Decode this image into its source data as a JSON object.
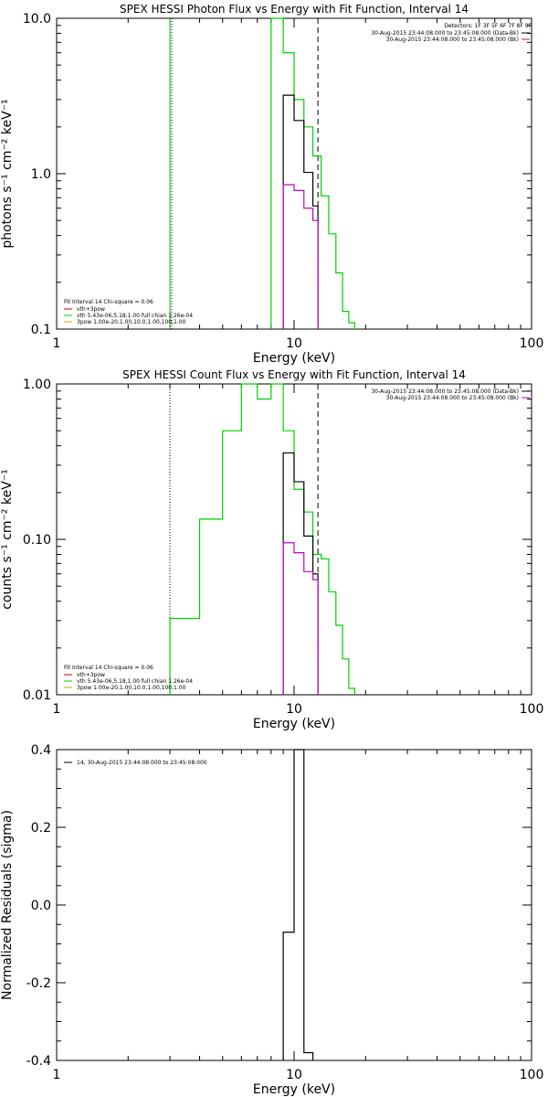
{
  "chart_data": [
    {
      "type": "line",
      "title": "SPEX HESSI Photon Flux vs Energy with Fit Function, Interval 14",
      "xlabel": "Energy (keV)",
      "ylabel": "photons s⁻¹ cm⁻² keV⁻¹",
      "xscale": "log",
      "yscale": "log",
      "xlim": [
        1,
        100
      ],
      "ylim": [
        0.1,
        10
      ],
      "x_ticks": [
        {
          "v": 1,
          "label": "1"
        },
        {
          "v": 10,
          "label": "10"
        },
        {
          "v": 100,
          "label": "100"
        }
      ],
      "y_ticks": [
        {
          "v": 0.1,
          "label": "0.1"
        },
        {
          "v": 1,
          "label": "1.0"
        },
        {
          "v": 10,
          "label": "10.0"
        }
      ],
      "vlines": [
        {
          "x": 3.0,
          "style": "solid",
          "color": "#00c000"
        },
        {
          "x": 3.05,
          "style": "dotted",
          "color": "#000000"
        },
        {
          "x": 12.6,
          "style": "dashed",
          "color": "#000000"
        }
      ],
      "series": [
        {
          "name": "vth+3pow",
          "color": "#00d000",
          "edges": [
            8.0,
            9.0,
            10.0,
            11.0,
            12.0,
            13.0,
            14.0,
            15.0,
            16.0,
            17.0,
            18.0
          ],
          "values": [
            10,
            6.0,
            3.0,
            2.0,
            1.3,
            0.72,
            0.41,
            0.23,
            0.13,
            0.11
          ]
        },
        {
          "name": "data",
          "color": "#000000",
          "edges": [
            9.0,
            10.0,
            11.0,
            12.0,
            12.6
          ],
          "values": [
            3.2,
            2.2,
            1.02,
            0.62
          ]
        },
        {
          "name": "background",
          "color": "#c000c0",
          "edges": [
            9.0,
            10.0,
            11.0,
            12.0,
            12.6
          ],
          "values": [
            0.85,
            0.78,
            0.6,
            0.5
          ]
        }
      ],
      "top_right_legend": {
        "header": "Detectors: 1F 3F 5F 6F 7F 8F 9F",
        "entries": [
          {
            "label": "30-Aug-2015 23:44:08.000 to 23:45:08.000 (Data-Bk)",
            "color": "#000000"
          },
          {
            "label": "30-Aug-2015 23:44:08.000 to 23:45:08.000 (Bk)",
            "color": "#c000c0"
          }
        ]
      },
      "bottom_left_legend": {
        "header": "Fit Interval 14   Chi-square = 0.06",
        "entries": [
          {
            "label": "vth+3pow",
            "color": "#c00000"
          },
          {
            "label": "vth 5.43e-06,5.18,1.00  full chian 1.26e-04",
            "color": "#00d000"
          },
          {
            "label": "3pow 1.00e-20,1.00,10.0,1.00,100,1.00",
            "color": "#e0a000"
          }
        ]
      }
    },
    {
      "type": "line",
      "title": "SPEX HESSI Count Flux vs Energy with Fit Function, Interval 14",
      "xlabel": "Energy (keV)",
      "ylabel": "counts s⁻¹ cm⁻² keV⁻¹",
      "xscale": "log",
      "yscale": "log",
      "xlim": [
        1,
        100
      ],
      "ylim": [
        0.01,
        1.0
      ],
      "x_ticks": [
        {
          "v": 1,
          "label": "1"
        },
        {
          "v": 10,
          "label": "10"
        },
        {
          "v": 100,
          "label": "100"
        }
      ],
      "y_ticks": [
        {
          "v": 0.01,
          "label": "0.01"
        },
        {
          "v": 0.1,
          "label": "0.10"
        },
        {
          "v": 1,
          "label": "1.00"
        }
      ],
      "vlines": [
        {
          "x": 3.0,
          "style": "dotted",
          "color": "#000000"
        },
        {
          "x": 12.6,
          "style": "dashed",
          "color": "#000000"
        }
      ],
      "series": [
        {
          "name": "vth+3pow",
          "color": "#00d000",
          "edges": [
            3.0,
            4.0,
            5.0,
            6.0,
            7.0,
            8.0,
            9.0,
            10.0,
            11.0,
            12.0,
            13.0,
            14.0,
            15.0,
            16.0,
            17.0,
            18.0
          ],
          "values": [
            0.031,
            0.135,
            0.5,
            1.0,
            0.8,
            1.0,
            0.5,
            0.21,
            0.15,
            0.08,
            0.075,
            0.046,
            0.028,
            0.017,
            0.011
          ]
        },
        {
          "name": "data",
          "color": "#000000",
          "edges": [
            9.0,
            10.0,
            11.0,
            12.0,
            12.6
          ],
          "values": [
            0.36,
            0.235,
            0.105,
            0.06
          ]
        },
        {
          "name": "background",
          "color": "#c000c0",
          "edges": [
            9.0,
            10.0,
            11.0,
            12.0,
            12.6
          ],
          "values": [
            0.095,
            0.082,
            0.062,
            0.055
          ]
        }
      ],
      "top_right_legend": {
        "header": "",
        "entries": [
          {
            "label": "30-Aug-2015 23:44:08.000 to 23:45:08.000 (Data-Bk)",
            "color": "#000000"
          },
          {
            "label": "30-Aug-2015 23:44:08.000 to 23:45:08.000 (Bk)",
            "color": "#c000c0"
          }
        ]
      },
      "bottom_left_legend": {
        "header": "Fit Interval 14   Chi-square = 0.06",
        "entries": [
          {
            "label": "vth+3pow",
            "color": "#c00000"
          },
          {
            "label": "vth 5.43e-06,5.18,1.00  full chian 1.26e-04",
            "color": "#00d000"
          },
          {
            "label": "3pow 1.00e-20,1.00,10.0,1.00,100,1.00",
            "color": "#e0a000"
          }
        ]
      }
    },
    {
      "type": "line",
      "title": "",
      "xlabel": "Energy (keV)",
      "ylabel": "Normalized Residuals (sigma)",
      "xscale": "log",
      "yscale": "linear",
      "xlim": [
        1,
        100
      ],
      "ylim": [
        -0.4,
        0.4
      ],
      "x_ticks": [
        {
          "v": 1,
          "label": "1"
        },
        {
          "v": 10,
          "label": "10"
        },
        {
          "v": 100,
          "label": "100"
        }
      ],
      "y_ticks": [
        {
          "v": 0.4,
          "label": "0.4"
        },
        {
          "v": 0.2,
          "label": "0.2"
        },
        {
          "v": 0.0,
          "label": "0.0"
        },
        {
          "v": -0.2,
          "label": "-0.2"
        },
        {
          "v": -0.4,
          "label": "-0.4"
        }
      ],
      "vlines": [],
      "series": [
        {
          "name": "14, 30-Aug-2015 23:44:08.000 to 23:45:08.000",
          "color": "#000000",
          "edges": [
            9.0,
            10.0,
            11.0,
            12.0
          ],
          "values": [
            -0.07,
            0.4,
            -0.38
          ]
        }
      ],
      "top_left_legend": {
        "entries": [
          {
            "label": "14, 30-Aug-2015 23:44:08.000 to 23:45:08.000",
            "color": "#000000"
          }
        ]
      }
    }
  ]
}
